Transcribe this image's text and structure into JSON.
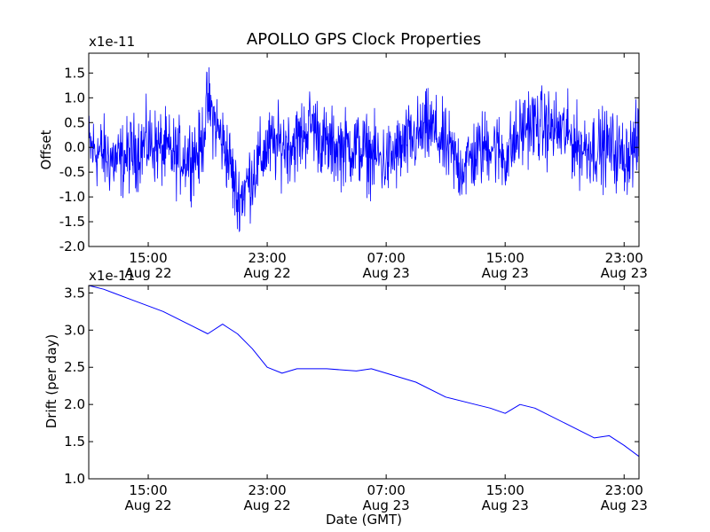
{
  "chart_data": [
    {
      "type": "line",
      "title": "APOLLO GPS Clock Properties",
      "ylabel": "Offset",
      "xlabel": "",
      "offset_text": "x1e-11",
      "ylim": [
        -2.0,
        1.9
      ],
      "yticks": [
        {
          "value": -2.0,
          "label": "-2.0"
        },
        {
          "value": -1.5,
          "label": "-1.5"
        },
        {
          "value": -1.0,
          "label": "-1.0"
        },
        {
          "value": -0.5,
          "label": "-0.5"
        },
        {
          "value": 0.0,
          "label": "0.0"
        },
        {
          "value": 0.5,
          "label": "0.5"
        },
        {
          "value": 1.0,
          "label": "1.0"
        },
        {
          "value": 1.5,
          "label": "1.5"
        }
      ],
      "xlim": [
        "Aug 22 11:00",
        "Aug 24 00:00"
      ],
      "xticks": [
        {
          "value": "Aug 22 15:00",
          "time": "15:00",
          "date": "Aug 22"
        },
        {
          "value": "Aug 22 23:00",
          "time": "23:00",
          "date": "Aug 22"
        },
        {
          "value": "Aug 23 07:00",
          "time": "07:00",
          "date": "Aug 23"
        },
        {
          "value": "Aug 23 15:00",
          "time": "15:00",
          "date": "Aug 23"
        },
        {
          "value": "Aug 23 23:00",
          "time": "23:00",
          "date": "Aug 23"
        }
      ],
      "color": "#0000ff",
      "series": [
        {
          "x": [
            "Aug 22 11:00",
            "Aug 22 13:00",
            "Aug 22 15:00",
            "Aug 22 17:00",
            "Aug 22 18:30",
            "Aug 22 19:00",
            "Aug 22 20:30",
            "Aug 22 21:00",
            "Aug 22 23:00",
            "Aug 23 01:00",
            "Aug 23 02:00",
            "Aug 23 03:00",
            "Aug 23 05:00",
            "Aug 23 07:00",
            "Aug 23 09:00",
            "Aug 23 10:00",
            "Aug 23 12:00",
            "Aug 23 14:00",
            "Aug 23 15:00",
            "Aug 23 16:30",
            "Aug 23 19:00",
            "Aug 23 20:00",
            "Aug 23 22:00",
            "Aug 23 23:00",
            "Aug 24 00:00"
          ],
          "values": [
            0.0,
            -0.3,
            0.1,
            -0.2,
            -0.1,
            0.9,
            -0.3,
            -1.1,
            0.0,
            0.1,
            0.5,
            0.0,
            0.0,
            -0.3,
            0.2,
            0.4,
            -0.4,
            0.1,
            -0.2,
            0.5,
            0.3,
            0.0,
            0.0,
            -0.2,
            0.1
          ]
        }
      ]
    },
    {
      "type": "line",
      "title": "",
      "ylabel": "Drift (per day)",
      "xlabel": "Date (GMT)",
      "offset_text": "x1e-11",
      "ylim": [
        1.0,
        3.6
      ],
      "yticks": [
        {
          "value": 1.0,
          "label": "1.0"
        },
        {
          "value": 1.5,
          "label": "1.5"
        },
        {
          "value": 2.0,
          "label": "2.0"
        },
        {
          "value": 2.5,
          "label": "2.5"
        },
        {
          "value": 3.0,
          "label": "3.0"
        },
        {
          "value": 3.5,
          "label": "3.5"
        }
      ],
      "xlim": [
        "Aug 22 11:00",
        "Aug 24 00:00"
      ],
      "xticks": [
        {
          "value": "Aug 22 15:00",
          "time": "15:00",
          "date": "Aug 22"
        },
        {
          "value": "Aug 22 23:00",
          "time": "23:00",
          "date": "Aug 22"
        },
        {
          "value": "Aug 23 07:00",
          "time": "07:00",
          "date": "Aug 23"
        },
        {
          "value": "Aug 23 15:00",
          "time": "15:00",
          "date": "Aug 23"
        },
        {
          "value": "Aug 23 23:00",
          "time": "23:00",
          "date": "Aug 23"
        }
      ],
      "color": "#0000ff",
      "series": [
        {
          "x": [
            "Aug 22 11:00",
            "Aug 22 12:00",
            "Aug 22 14:00",
            "Aug 22 16:00",
            "Aug 22 18:00",
            "Aug 22 19:00",
            "Aug 22 20:00",
            "Aug 22 21:00",
            "Aug 22 22:00",
            "Aug 22 23:00",
            "Aug 23 00:00",
            "Aug 23 01:00",
            "Aug 23 03:00",
            "Aug 23 05:00",
            "Aug 23 06:00",
            "Aug 23 07:00",
            "Aug 23 09:00",
            "Aug 23 11:00",
            "Aug 23 13:00",
            "Aug 23 14:00",
            "Aug 23 15:00",
            "Aug 23 16:00",
            "Aug 23 17:00",
            "Aug 23 19:00",
            "Aug 23 21:00",
            "Aug 23 22:00",
            "Aug 23 23:00",
            "Aug 24 00:00"
          ],
          "values": [
            3.6,
            3.55,
            3.4,
            3.25,
            3.05,
            2.95,
            3.08,
            2.95,
            2.75,
            2.5,
            2.42,
            2.48,
            2.48,
            2.45,
            2.48,
            2.42,
            2.3,
            2.1,
            2.0,
            1.95,
            1.88,
            2.0,
            1.95,
            1.75,
            1.55,
            1.58,
            1.45,
            1.3
          ]
        }
      ]
    }
  ]
}
